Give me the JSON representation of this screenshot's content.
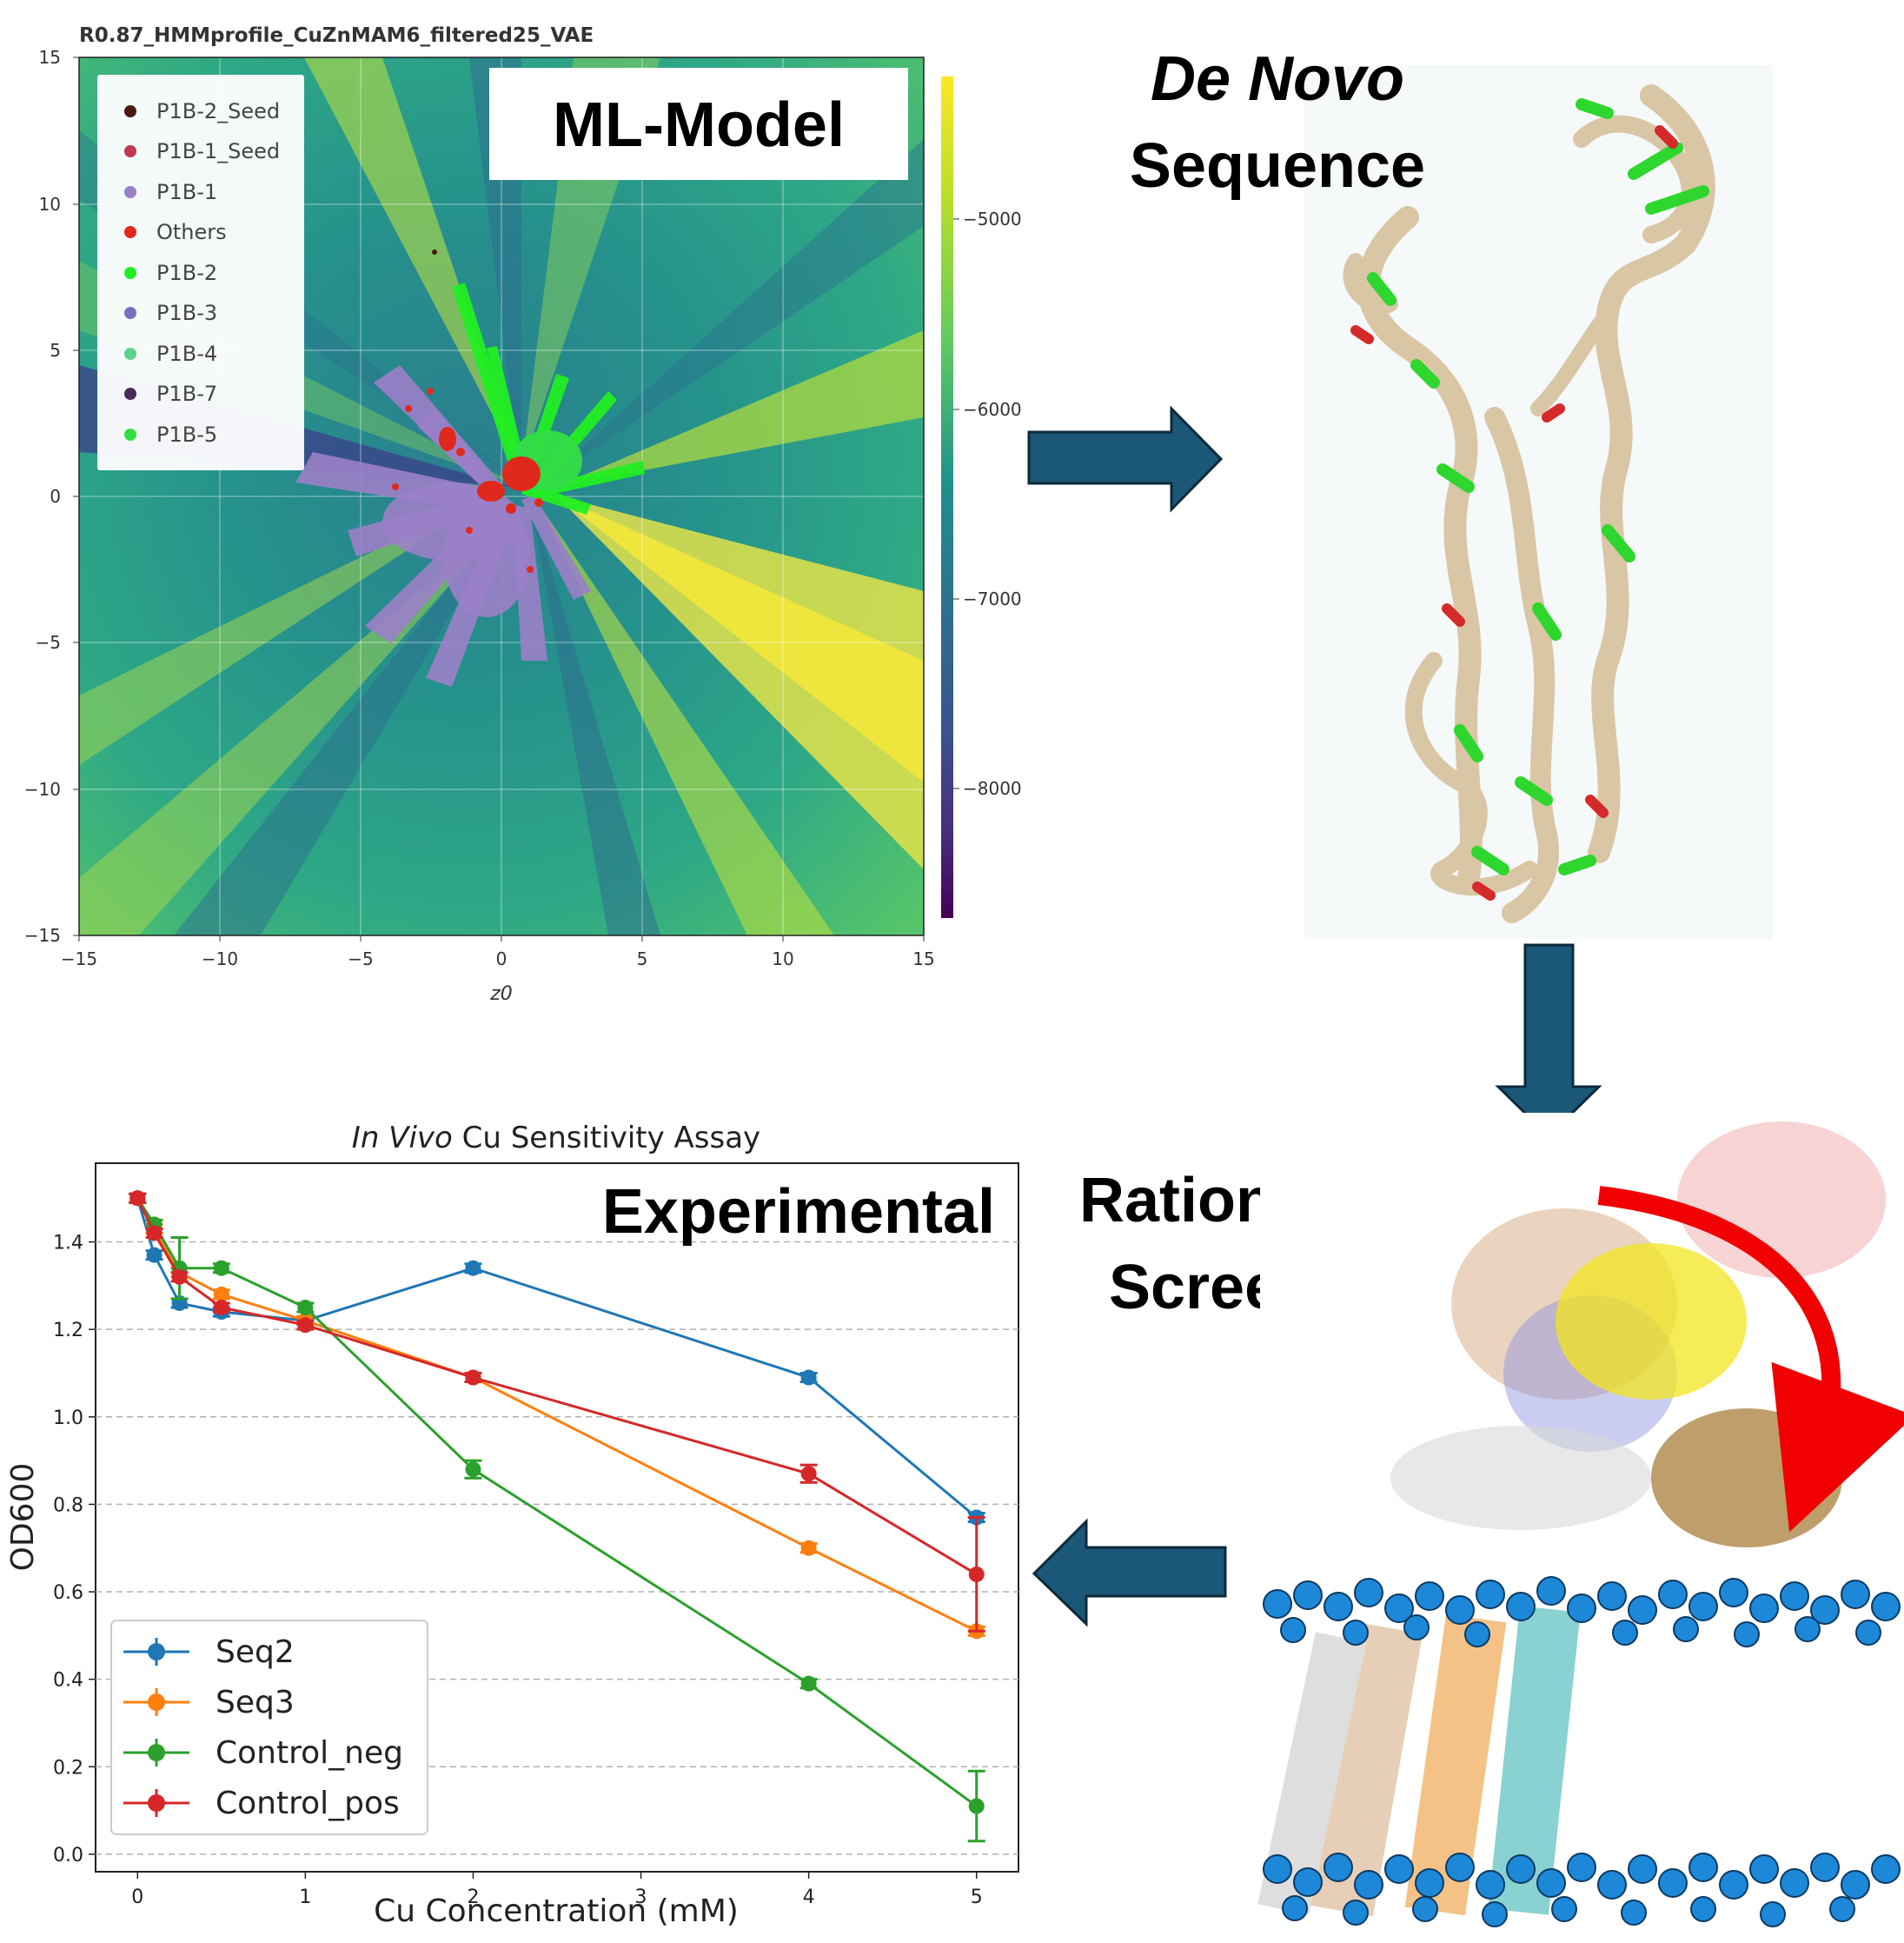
{
  "ml_panel": {
    "plot_title": "R0.87_HMMprofile_CuZnMAM6_filtered25_VAE",
    "box_label": "ML-Model",
    "x_label": "z0",
    "x_ticks": [
      "−15",
      "−10",
      "−5",
      "0",
      "5",
      "10",
      "15"
    ],
    "y_ticks": [
      "15",
      "10",
      "5",
      "0",
      "−5",
      "−10",
      "−15"
    ],
    "colorbar_ticks": [
      "−5000",
      "−6000",
      "−7000",
      "−8000"
    ],
    "legend": [
      {
        "label": "P1B-2_Seed",
        "color": "#4a1a10"
      },
      {
        "label": "P1B-1_Seed",
        "color": "#c0394f"
      },
      {
        "label": "P1B-1",
        "color": "#9b7fc8"
      },
      {
        "label": "Others",
        "color": "#e0291c"
      },
      {
        "label": "P1B-2",
        "color": "#22ee22"
      },
      {
        "label": "P1B-3",
        "color": "#7a70c0"
      },
      {
        "label": "P1B-4",
        "color": "#5ed08a"
      },
      {
        "label": "P1B-7",
        "color": "#4a2a5a"
      },
      {
        "label": "P1B-5",
        "color": "#33dd44"
      }
    ]
  },
  "denovo_panel": {
    "title_line1": "De Novo",
    "title_line2": "Sequence"
  },
  "md_panel": {
    "title_line1": "Rational MD",
    "title_line2": "Screening"
  },
  "exp_panel": {
    "box_label": "Experimental"
  },
  "chart_data": {
    "type": "line",
    "title_italic": "In Vivo",
    "title_rest": " Cu Sensitivity Assay",
    "xlabel": "Cu Concentration (mM)",
    "ylabel": "OD600",
    "x_ticks": [
      "0",
      "1",
      "2",
      "3",
      "4",
      "5"
    ],
    "y_ticks": [
      "0.0",
      "0.2",
      "0.4",
      "0.6",
      "0.8",
      "1.0",
      "1.2",
      "1.4"
    ],
    "xlim": [
      -0.25,
      5.25
    ],
    "ylim": [
      -0.04,
      1.58
    ],
    "grid": "horizontal dashed",
    "legend_position": "bottom-left",
    "series": [
      {
        "name": "Seq2",
        "color": "#1f77b4",
        "x": [
          0,
          0.1,
          0.25,
          0.5,
          1,
          2,
          4,
          5
        ],
        "y": [
          1.5,
          1.37,
          1.26,
          1.24,
          1.22,
          1.34,
          1.09,
          0.77
        ],
        "err": [
          0.01,
          0.01,
          0.01,
          0.01,
          0.01,
          0.01,
          0.01,
          0.01
        ]
      },
      {
        "name": "Seq3",
        "color": "#ff7f0e",
        "x": [
          0,
          0.1,
          0.25,
          0.5,
          1,
          2,
          4,
          5
        ],
        "y": [
          1.5,
          1.43,
          1.33,
          1.28,
          1.22,
          1.09,
          0.7,
          0.51
        ],
        "err": [
          0.01,
          0.01,
          0.01,
          0.01,
          0.01,
          0.01,
          0.01,
          0.01
        ]
      },
      {
        "name": "Control_neg",
        "color": "#2ca02c",
        "x": [
          0,
          0.1,
          0.25,
          0.5,
          1,
          2,
          4,
          5
        ],
        "y": [
          1.5,
          1.44,
          1.34,
          1.34,
          1.25,
          0.88,
          0.39,
          0.11
        ],
        "err": [
          0.01,
          0.01,
          0.07,
          0.01,
          0.01,
          0.02,
          0.01,
          0.08
        ]
      },
      {
        "name": "Control_pos",
        "color": "#d62728",
        "x": [
          0,
          0.1,
          0.25,
          0.5,
          1,
          2,
          4,
          5
        ],
        "y": [
          1.5,
          1.42,
          1.32,
          1.25,
          1.21,
          1.09,
          0.87,
          0.64
        ],
        "err": [
          0.01,
          0.01,
          0.01,
          0.01,
          0.01,
          0.01,
          0.02,
          0.13
        ]
      }
    ]
  }
}
